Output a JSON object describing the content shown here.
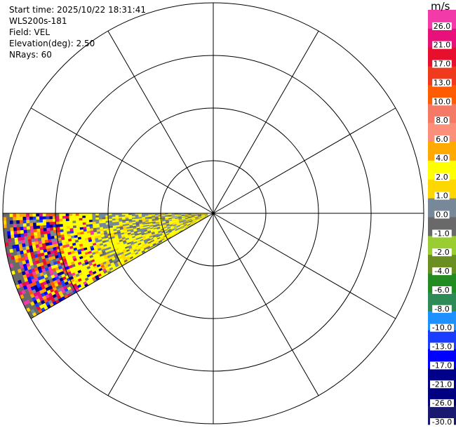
{
  "header": {
    "start_time": "Start time: 2025/10/22 18:31:41",
    "instrument": "WLS200s-181",
    "field": "Field: VEL",
    "elevation": "Elevation(deg): 2.50",
    "nrays": "NRays: 60"
  },
  "colorbar": {
    "unit": "m/s",
    "segments": [
      {
        "label": "26.0",
        "color": "#f23ba8"
      },
      {
        "label": "21.0",
        "color": "#e8117a"
      },
      {
        "label": "17.0",
        "color": "#e60f2e"
      },
      {
        "label": "13.0",
        "color": "#f03a1d"
      },
      {
        "label": "10.0",
        "color": "#ff5b00"
      },
      {
        "label": "8.0",
        "color": "#f57a65"
      },
      {
        "label": "6.0",
        "color": "#fb8f7a"
      },
      {
        "label": "4.0",
        "color": "#ffaa00"
      },
      {
        "label": "2.0",
        "color": "#ffff00"
      },
      {
        "label": "1.0",
        "color": "#ffd700"
      },
      {
        "label": "0.0",
        "color": "#778899"
      },
      {
        "label": "-1.0",
        "color": "#696969"
      },
      {
        "label": "-2.0",
        "color": "#9acd32"
      },
      {
        "label": "-4.0",
        "color": "#6b8e23"
      },
      {
        "label": "-6.0",
        "color": "#228b22"
      },
      {
        "label": "-8.0",
        "color": "#2e8b57"
      },
      {
        "label": "-10.0",
        "color": "#1e90ff"
      },
      {
        "label": "-13.0",
        "color": "#1a3cff"
      },
      {
        "label": "-17.0",
        "color": "#0000ff"
      },
      {
        "label": "-21.0",
        "color": "#00008b"
      },
      {
        "label": "-26.0",
        "color": "#000080"
      },
      {
        "label": "-30.0",
        "color": "#191970"
      }
    ]
  },
  "chart_data": {
    "type": "heatmap",
    "projection": "polar (PPI)",
    "field": "VEL",
    "elevation_deg": 2.5,
    "n_rays": 60,
    "sector_azimuth_deg": [
      240,
      270
    ],
    "range_rings": 4,
    "spokes_every_deg": 30,
    "dominant_values_ms": [
      0.0,
      1.0,
      2.0
    ],
    "far_range_mixed_values_ms": [
      -30.0,
      26.0
    ]
  }
}
